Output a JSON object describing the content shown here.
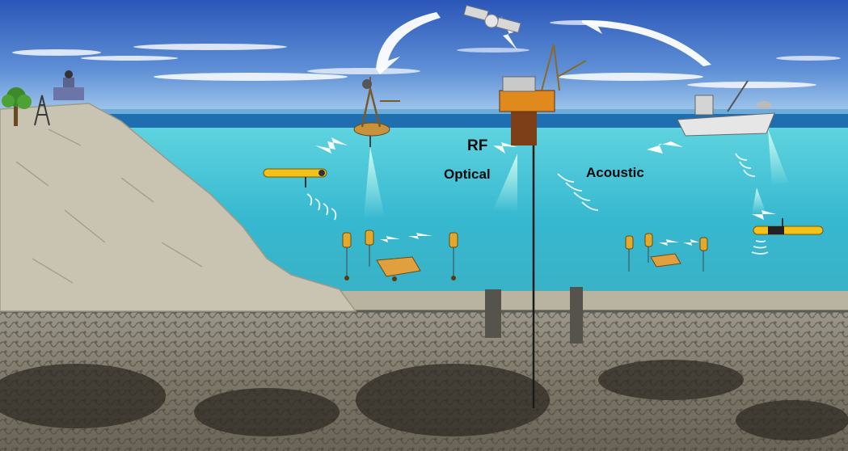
{
  "labels": {
    "rf": "RF",
    "optical": "Optical",
    "acoustic": "Acoustic"
  },
  "colors": {
    "sky_top": "#2b56b8",
    "sky_bottom": "#9cc8ef",
    "sea_surface": "#1f6fb0",
    "water_top": "#3fc4d6",
    "water_bottom": "#2fa8c6",
    "land": "#c9c4b2",
    "seabed": "#8a8578",
    "radio_bolt": "#ffffff",
    "optical_beam": "#bff6e6",
    "acoustic_wave": "#ffffff",
    "auv": "#f2c21a"
  },
  "icons": [
    "tree-icon",
    "antenna-tower-icon",
    "ground-station-icon",
    "satellite-icon",
    "buoy-icon",
    "oil-platform-icon",
    "ship-icon",
    "auv-icon",
    "sensor-node-icon",
    "subsea-station-icon"
  ]
}
